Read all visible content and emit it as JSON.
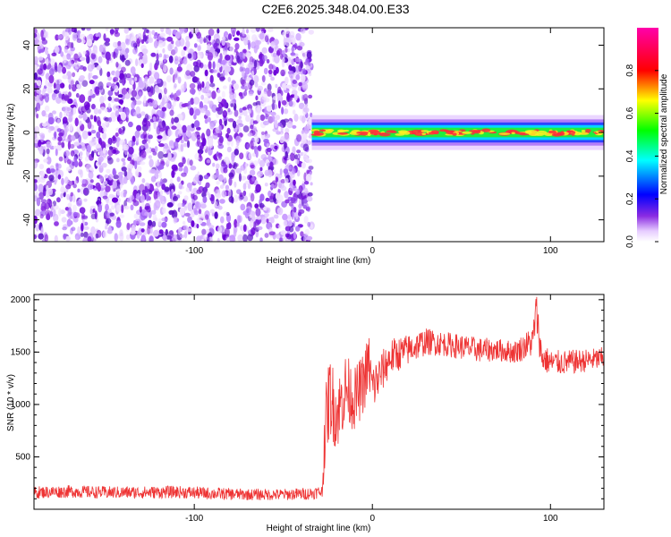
{
  "figure": {
    "title": "C2E6.2025.348.04.00.E33"
  },
  "chart_data": [
    {
      "type": "heatmap",
      "title": "C2E6.2025.348.04.00.E33",
      "xlabel": "Height of straight line (km)",
      "ylabel": "Frequency (Hz)",
      "xlim": [
        -190,
        130
      ],
      "ylim": [
        -50,
        48
      ],
      "x_ticks": [
        -100,
        0,
        100
      ],
      "y_ticks": [
        -40,
        -20,
        0,
        20,
        40
      ],
      "colorbar": {
        "label": "Normalized spectral amplitude",
        "range": [
          0,
          1
        ],
        "ticks": [
          "0.0",
          "0.2",
          "0.4",
          "0.6",
          "0.8"
        ],
        "colormap": "rainbow (white-violet-blue-cyan-green-yellow-red-magenta)"
      },
      "regions": [
        {
          "description": "broadband noise",
          "x_range": [
            -190,
            -34
          ],
          "freq_range": [
            -50,
            48
          ],
          "amplitude_approx": 0.1
        },
        {
          "description": "narrow signal band centered near 0 Hz",
          "x_range": [
            -34,
            130
          ],
          "freq_range": [
            -3,
            3
          ],
          "amplitude_approx": 0.85
        }
      ],
      "grid": false
    },
    {
      "type": "line",
      "xlabel": "Height of straight line (km)",
      "ylabel": "SNR (10 * v/v)",
      "xlim": [
        -190,
        130
      ],
      "ylim": [
        0,
        2050
      ],
      "x_ticks": [
        -100,
        0,
        100
      ],
      "y_ticks": [
        500,
        1000,
        1500,
        2000
      ],
      "color": "#ee3333",
      "series": [
        {
          "name": "",
          "x": [
            -190,
            -170,
            -150,
            -130,
            -110,
            -90,
            -70,
            -50,
            -35,
            -28,
            -27,
            -24,
            -20,
            -15,
            -10,
            -5,
            -2,
            0,
            5,
            10,
            20,
            30,
            40,
            50,
            60,
            70,
            80,
            90,
            92,
            95,
            100,
            110,
            120,
            130
          ],
          "y": [
            160,
            170,
            160,
            160,
            165,
            150,
            140,
            140,
            150,
            170,
            700,
            1100,
            900,
            1150,
            1050,
            1200,
            1400,
            1150,
            1300,
            1450,
            1520,
            1600,
            1580,
            1550,
            1520,
            1520,
            1500,
            1600,
            1900,
            1450,
            1400,
            1400,
            1420,
            1440
          ],
          "noise_amplitude": [
            60,
            60,
            60,
            60,
            60,
            60,
            55,
            55,
            60,
            60,
            350,
            400,
            350,
            350,
            300,
            300,
            300,
            250,
            200,
            180,
            150,
            130,
            120,
            120,
            120,
            110,
            110,
            150,
            200,
            150,
            120,
            120,
            110,
            110
          ]
        }
      ],
      "grid": false
    }
  ]
}
